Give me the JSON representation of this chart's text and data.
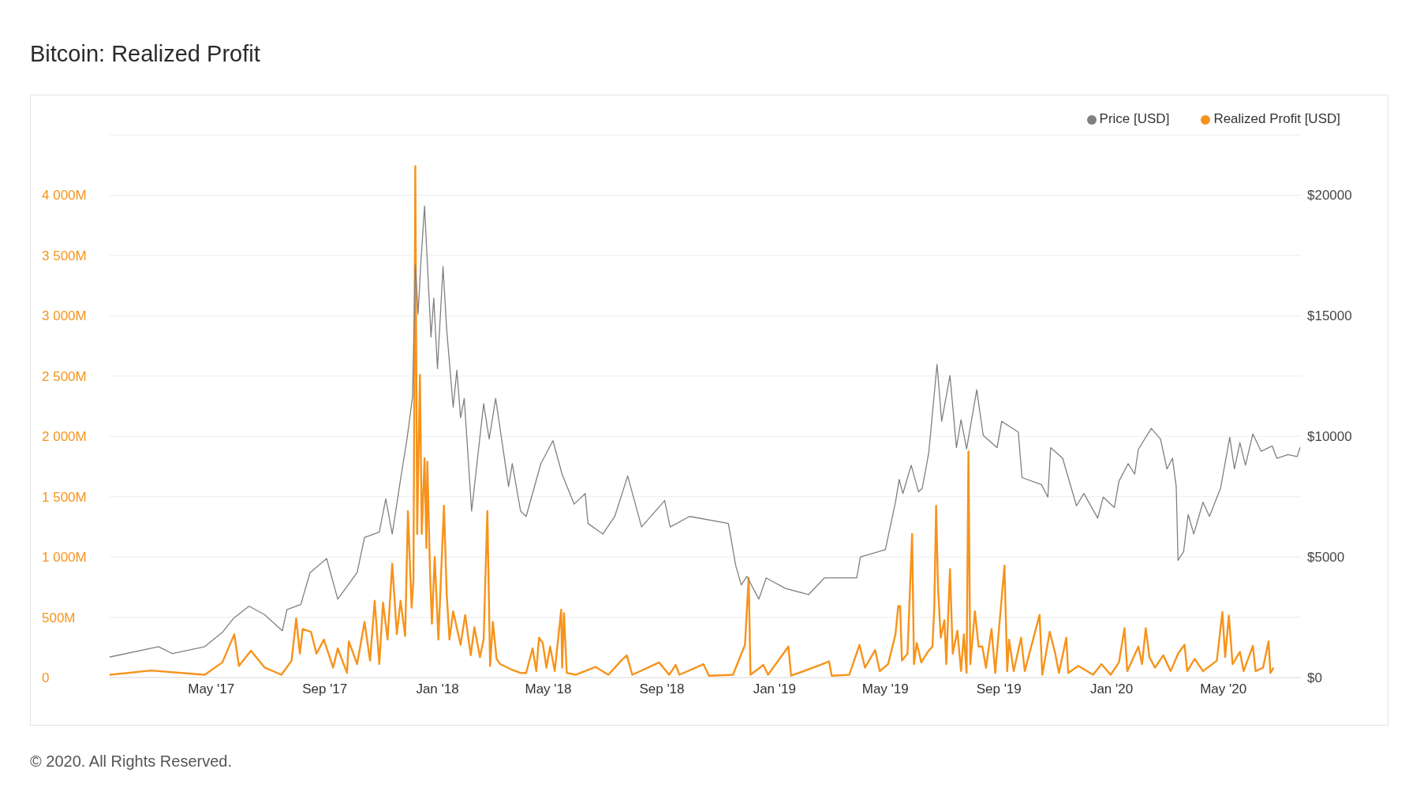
{
  "chart_data": {
    "type": "line",
    "title": "Bitcoin: Realized Profit",
    "annotations": [
      "© 2020. All Rights Reserved."
    ],
    "xlim": [
      "2017-01-11",
      "2020-07-24"
    ],
    "xticks": [
      {
        "value": "2017-05-01",
        "label": "May '17"
      },
      {
        "value": "2017-09-01",
        "label": "Sep '17"
      },
      {
        "value": "2018-01-01",
        "label": "Jan '18"
      },
      {
        "value": "2018-05-01",
        "label": "May '18"
      },
      {
        "value": "2018-09-01",
        "label": "Sep '18"
      },
      {
        "value": "2019-01-01",
        "label": "Jan '19"
      },
      {
        "value": "2019-05-01",
        "label": "May '19"
      },
      {
        "value": "2019-09-01",
        "label": "Sep '19"
      },
      {
        "value": "2020-01-01",
        "label": "Jan '20"
      },
      {
        "value": "2020-05-01",
        "label": "May '20"
      }
    ],
    "ylim": [
      0,
      4500
    ],
    "yticks": [
      0,
      {
        "value": 500,
        "label": "500M"
      },
      {
        "value": 1000,
        "label": "1 000M"
      },
      {
        "value": 1500,
        "label": "1 500M"
      },
      {
        "value": 2000,
        "label": "2 000M"
      },
      {
        "value": 2500,
        "label": "2 500M"
      },
      {
        "value": 3000,
        "label": "3 000M"
      },
      {
        "value": 3500,
        "label": "3 500M"
      },
      {
        "value": 4000,
        "label": "4 000M"
      },
      {
        "value": 4500,
        "label": null
      }
    ],
    "y2lim": [
      0,
      22500
    ],
    "y2ticks": [
      {
        "value": 0,
        "label": "$0"
      },
      {
        "value": 5000,
        "label": "$5000"
      },
      {
        "value": 10000,
        "label": "$10000"
      },
      {
        "value": 15000,
        "label": "$15000"
      },
      {
        "value": 20000,
        "label": "$20000"
      }
    ],
    "grid": "y",
    "legend": "top right",
    "marker": "none",
    "line_style": "solid",
    "series": [
      {
        "name": "Realized Profit [USD]",
        "color": "#f7931a",
        "x": [
          "2017-01-11",
          "2017-02-25",
          "2017-04-13",
          "2017-04-24",
          "2017-05-13",
          "2017-05-26",
          "2017-05-31",
          "2017-06-13",
          "2017-06-28",
          "2017-07-16",
          "2017-07-27",
          "2017-08-01",
          "2017-08-05",
          "2017-08-08",
          "2017-08-17",
          "2017-08-23",
          "2017-08-31",
          "2017-09-10",
          "2017-09-15",
          "2017-09-25",
          "2017-09-27",
          "2017-10-06",
          "2017-10-14",
          "2017-10-20",
          "2017-10-25",
          "2017-10-30",
          "2017-11-03",
          "2017-11-08",
          "2017-11-13",
          "2017-11-18",
          "2017-11-22",
          "2017-11-27",
          "2017-11-30",
          "2017-12-04",
          "2017-12-06",
          "2017-12-08",
          "2017-12-10",
          "2017-12-13",
          "2017-12-15",
          "2017-12-18",
          "2017-12-20",
          "2017-12-21",
          "2017-12-24",
          "2017-12-26",
          "2017-12-29",
          "2018-01-02",
          "2018-01-08",
          "2018-01-11",
          "2018-01-14",
          "2018-01-18",
          "2018-01-26",
          "2018-01-31",
          "2018-02-06",
          "2018-02-10",
          "2018-02-16",
          "2018-02-20",
          "2018-02-24",
          "2018-02-27",
          "2018-03-02",
          "2018-03-06",
          "2018-03-10",
          "2018-03-22",
          "2018-04-01",
          "2018-04-07",
          "2018-04-14",
          "2018-04-18",
          "2018-04-21",
          "2018-04-25",
          "2018-04-29",
          "2018-05-03",
          "2018-05-08",
          "2018-05-15",
          "2018-05-16",
          "2018-05-18",
          "2018-05-21",
          "2018-05-31",
          "2018-06-21",
          "2018-07-05",
          "2018-07-19",
          "2018-07-25",
          "2018-07-31",
          "2018-08-17",
          "2018-08-29",
          "2018-09-09",
          "2018-09-16",
          "2018-09-20",
          "2018-10-16",
          "2018-10-22",
          "2018-11-17",
          "2018-11-30",
          "2018-12-04",
          "2018-12-06",
          "2018-12-20",
          "2018-12-25",
          "2019-01-16",
          "2019-01-19",
          "2019-02-20",
          "2019-03-01",
          "2019-03-04",
          "2019-03-23",
          "2019-04-03",
          "2019-04-09",
          "2019-04-20",
          "2019-04-25",
          "2019-05-04",
          "2019-05-12",
          "2019-05-15",
          "2019-05-17",
          "2019-05-19",
          "2019-05-25",
          "2019-05-30",
          "2019-06-01",
          "2019-06-04",
          "2019-06-09",
          "2019-06-10",
          "2019-06-16",
          "2019-06-21",
          "2019-06-23",
          "2019-06-25",
          "2019-06-27",
          "2019-06-30",
          "2019-07-04",
          "2019-07-06",
          "2019-07-10",
          "2019-07-13",
          "2019-07-18",
          "2019-07-22",
          "2019-07-25",
          "2019-07-28",
          "2019-07-30",
          "2019-08-01",
          "2019-08-06",
          "2019-08-10",
          "2019-08-14",
          "2019-08-18",
          "2019-08-24",
          "2019-08-28",
          "2019-09-07",
          "2019-09-10",
          "2019-09-12",
          "2019-09-17",
          "2019-09-25",
          "2019-09-29",
          "2019-10-15",
          "2019-10-18",
          "2019-10-26",
          "2019-11-01",
          "2019-11-05",
          "2019-11-13",
          "2019-11-15",
          "2019-11-26",
          "2019-12-12",
          "2019-12-21",
          "2019-12-31",
          "2020-01-09",
          "2020-01-15",
          "2020-01-18",
          "2020-01-30",
          "2020-02-03",
          "2020-02-07",
          "2020-02-11",
          "2020-02-17",
          "2020-02-26",
          "2020-03-05",
          "2020-03-13",
          "2020-03-20",
          "2020-03-23",
          "2020-03-31",
          "2020-04-09",
          "2020-04-24",
          "2020-04-30",
          "2020-05-03",
          "2020-05-07",
          "2020-05-11",
          "2020-05-19",
          "2020-05-23",
          "2020-06-02",
          "2020-06-05",
          "2020-06-13",
          "2020-06-19",
          "2020-06-21",
          "2020-06-24"
        ],
        "values": [
          23,
          58,
          29,
          23,
          125,
          359,
          96,
          222,
          82,
          23,
          140,
          490,
          198,
          403,
          379,
          198,
          315,
          82,
          242,
          38,
          300,
          111,
          461,
          140,
          636,
          111,
          622,
          315,
          943,
          359,
          636,
          344,
          1380,
          578,
          811,
          4240,
          1190,
          2510,
          1190,
          1818,
          1074,
          1789,
          855,
          446,
          1000,
          315,
          1424,
          694,
          315,
          549,
          271,
          519,
          184,
          417,
          169,
          315,
          1380,
          96,
          461,
          155,
          111,
          67,
          38,
          38,
          242,
          53,
          330,
          286,
          82,
          257,
          53,
          563,
          82,
          534,
          38,
          23,
          88,
          23,
          140,
          184,
          23,
          82,
          125,
          23,
          105,
          23,
          111,
          15,
          23,
          271,
          826,
          23,
          105,
          23,
          257,
          15,
          105,
          134,
          15,
          23,
          271,
          82,
          228,
          53,
          111,
          359,
          592,
          592,
          140,
          198,
          1190,
          111,
          286,
          125,
          140,
          213,
          257,
          578,
          1424,
          753,
          330,
          476,
          111,
          899,
          198,
          388,
          53,
          359,
          38,
          1876,
          111,
          549,
          257,
          257,
          82,
          403,
          38,
          928,
          53,
          315,
          53,
          330,
          53,
          519,
          23,
          379,
          198,
          38,
          330,
          38,
          96,
          23,
          111,
          23,
          125,
          409,
          53,
          257,
          111,
          409,
          169,
          82,
          184,
          53,
          198,
          271,
          53,
          155,
          53,
          140,
          543,
          169,
          514,
          111,
          213,
          53,
          263,
          53,
          82,
          300,
          38,
          76
        ]
      },
      {
        "name": "Price [USD]",
        "color": "#808080",
        "axis": "y2",
        "x": [
          "2017-01-11",
          "2017-03-05",
          "2017-03-20",
          "2017-04-24",
          "2017-05-13",
          "2017-05-25",
          "2017-06-11",
          "2017-06-28",
          "2017-07-17",
          "2017-07-22",
          "2017-08-06",
          "2017-08-16",
          "2017-09-03",
          "2017-09-15",
          "2017-10-06",
          "2017-10-14",
          "2017-10-30",
          "2017-11-06",
          "2017-11-13",
          "2017-11-22",
          "2017-11-29",
          "2017-12-05",
          "2017-12-08",
          "2017-12-11",
          "2017-12-14",
          "2017-12-18",
          "2017-12-25",
          "2017-12-28",
          "2018-01-01",
          "2018-01-07",
          "2018-01-11",
          "2018-01-18",
          "2018-01-22",
          "2018-01-26",
          "2018-01-30",
          "2018-02-07",
          "2018-02-20",
          "2018-02-26",
          "2018-03-05",
          "2018-03-19",
          "2018-03-23",
          "2018-04-01",
          "2018-04-07",
          "2018-04-23",
          "2018-05-06",
          "2018-05-16",
          "2018-05-29",
          "2018-06-10",
          "2018-06-13",
          "2018-06-29",
          "2018-07-12",
          "2018-07-26",
          "2018-08-10",
          "2018-09-04",
          "2018-09-10",
          "2018-10-01",
          "2018-11-12",
          "2018-11-20",
          "2018-11-26",
          "2018-12-02",
          "2018-12-15",
          "2018-12-23",
          "2019-01-13",
          "2019-02-07",
          "2019-02-24",
          "2019-03-31",
          "2019-04-04",
          "2019-05-01",
          "2019-05-12",
          "2019-05-16",
          "2019-05-20",
          "2019-05-29",
          "2019-06-06",
          "2019-06-10",
          "2019-06-17",
          "2019-06-26",
          "2019-07-01",
          "2019-07-10",
          "2019-07-17",
          "2019-07-22",
          "2019-07-28",
          "2019-08-08",
          "2019-08-15",
          "2019-08-30",
          "2019-09-04",
          "2019-09-22",
          "2019-09-26",
          "2019-10-17",
          "2019-10-24",
          "2019-10-27",
          "2019-11-09",
          "2019-11-24",
          "2019-12-02",
          "2019-12-17",
          "2019-12-23",
          "2020-01-04",
          "2020-01-09",
          "2020-01-19",
          "2020-01-26",
          "2020-01-30",
          "2020-02-13",
          "2020-02-23",
          "2020-03-01",
          "2020-03-07",
          "2020-03-11",
          "2020-03-13",
          "2020-03-19",
          "2020-03-24",
          "2020-03-30",
          "2020-04-09",
          "2020-04-16",
          "2020-04-28",
          "2020-05-08",
          "2020-05-13",
          "2020-05-19",
          "2020-05-25",
          "2020-06-02",
          "2020-06-11",
          "2020-06-23",
          "2020-06-28",
          "2020-07-10",
          "2020-07-20",
          "2020-07-23"
        ],
        "values": [
          850,
          1280,
          990,
          1280,
          1870,
          2450,
          2960,
          2600,
          1940,
          2820,
          3030,
          4350,
          4930,
          3250,
          4350,
          5810,
          6030,
          7410,
          5950,
          8210,
          9890,
          11640,
          17110,
          15070,
          17190,
          19550,
          14120,
          15730,
          12810,
          17040,
          14420,
          11210,
          12740,
          10770,
          11570,
          6900,
          11350,
          9890,
          11570,
          7920,
          8870,
          6900,
          6680,
          8870,
          9820,
          8430,
          7190,
          7630,
          6390,
          5950,
          6680,
          8360,
          6240,
          7340,
          6240,
          6680,
          6390,
          4640,
          3840,
          4200,
          3250,
          4130,
          3690,
          3440,
          4130,
          4130,
          5000,
          5300,
          7270,
          8210,
          7630,
          8800,
          7700,
          7850,
          9310,
          12990,
          10620,
          12520,
          9530,
          10690,
          9480,
          11930,
          10040,
          9530,
          10620,
          10180,
          8290,
          8000,
          7480,
          9530,
          9090,
          7120,
          7630,
          6610,
          7480,
          7050,
          8140,
          8870,
          8430,
          9460,
          10330,
          9890,
          8650,
          9090,
          7920,
          4860,
          5220,
          6760,
          5950,
          7270,
          6680,
          7850,
          9960,
          8650,
          9740,
          8800,
          10100,
          9380,
          9600,
          9090,
          9240,
          9160,
          9530
        ]
      }
    ]
  }
}
